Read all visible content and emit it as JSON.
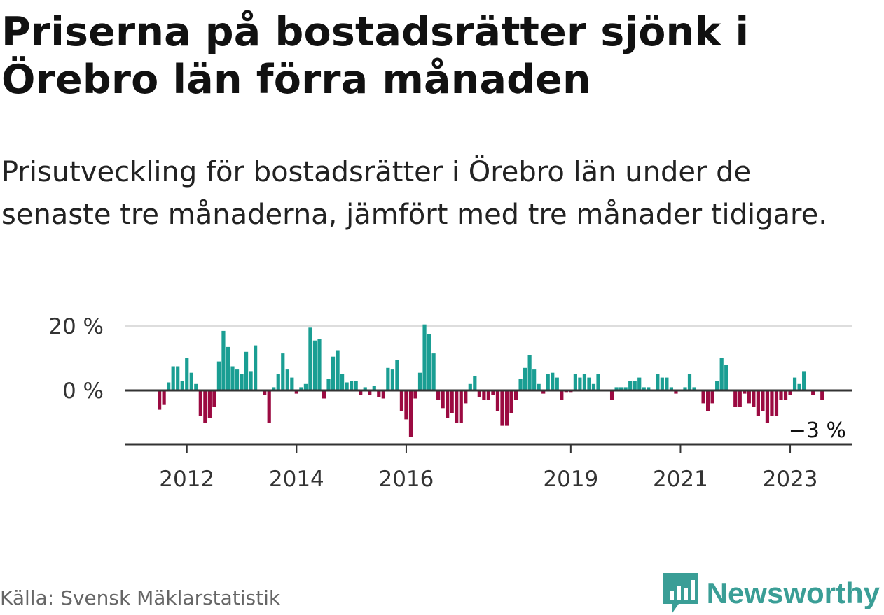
{
  "title": "Priserna på bostadsrätter sjönk i Örebro län förra månaden",
  "subtitle": "Prisutveckling för bostadsrätter i Örebro län under de senaste tre månaderna, jämfört med tre månader tidigare.",
  "source": "Källa: Svensk Mäklarstatistik",
  "brand": {
    "name": "Newsworthy",
    "icon": "newsworthy-logo-icon",
    "color": "#3a9e96"
  },
  "colors": {
    "positive": "#1a9e93",
    "negative": "#9b0a41",
    "gridline": "#dddddd",
    "axis": "#333333"
  },
  "chart_data": {
    "type": "bar",
    "title": "",
    "xlabel": "",
    "ylabel": "",
    "y_ticks": [
      {
        "value": 0,
        "label": "0 %"
      },
      {
        "value": 20,
        "label": "20 %"
      }
    ],
    "ylim": [
      -17,
      20
    ],
    "x_ticks": [
      {
        "year": 2012,
        "label": "2012"
      },
      {
        "year": 2014,
        "label": "2014"
      },
      {
        "year": 2016,
        "label": "2016"
      },
      {
        "year": 2019,
        "label": "2019"
      },
      {
        "year": 2021,
        "label": "2021"
      },
      {
        "year": 2023,
        "label": "2023"
      }
    ],
    "x_start": "2011-07",
    "end_label": "−3 %",
    "grid": true,
    "legend": "none",
    "series": [
      {
        "values": [
          -6,
          -4.5,
          2.5,
          7.5,
          7.5,
          3,
          10,
          5.5,
          2,
          -8,
          -10,
          -8.5,
          -5,
          9,
          18.5,
          13.5,
          7.5,
          6.5,
          5,
          12,
          6,
          14,
          0,
          -1.5,
          -10,
          1,
          5,
          11.5,
          6.5,
          4,
          -1,
          1,
          2,
          19.5,
          15.5,
          16,
          -2.5,
          3.5,
          10.5,
          12.5,
          5,
          2.5,
          3,
          3,
          -1.5,
          1,
          -1.5,
          1.5,
          -2,
          -2.5,
          7,
          6.5,
          9.5,
          -6.5,
          -9,
          -14.5,
          -2.5,
          5.5,
          20.5,
          17.5,
          11.5,
          -3,
          -5.5,
          -8.5,
          -7,
          -10,
          -10,
          -4,
          2,
          4.5,
          -2,
          -3,
          -3,
          -1.5,
          -6.5,
          -11,
          -11,
          -7,
          -3,
          3.5,
          7,
          11,
          6.5,
          2,
          -1,
          5,
          5.5,
          4,
          -3,
          -0.5,
          -0.5,
          5,
          4,
          5,
          4,
          2,
          5,
          0,
          0,
          -3,
          1,
          1,
          1,
          3,
          3,
          4,
          1,
          1,
          0,
          5,
          4,
          4,
          1,
          -1,
          0,
          1,
          5,
          1,
          0,
          -4,
          -6.5,
          -4,
          3,
          10,
          8,
          0,
          -5,
          -5,
          -1,
          -4,
          -5,
          -8,
          -6.5,
          -10,
          -8,
          -8,
          -3,
          -3,
          -1.5,
          4,
          2,
          6,
          0,
          -1.5,
          0,
          -3
        ]
      }
    ]
  }
}
